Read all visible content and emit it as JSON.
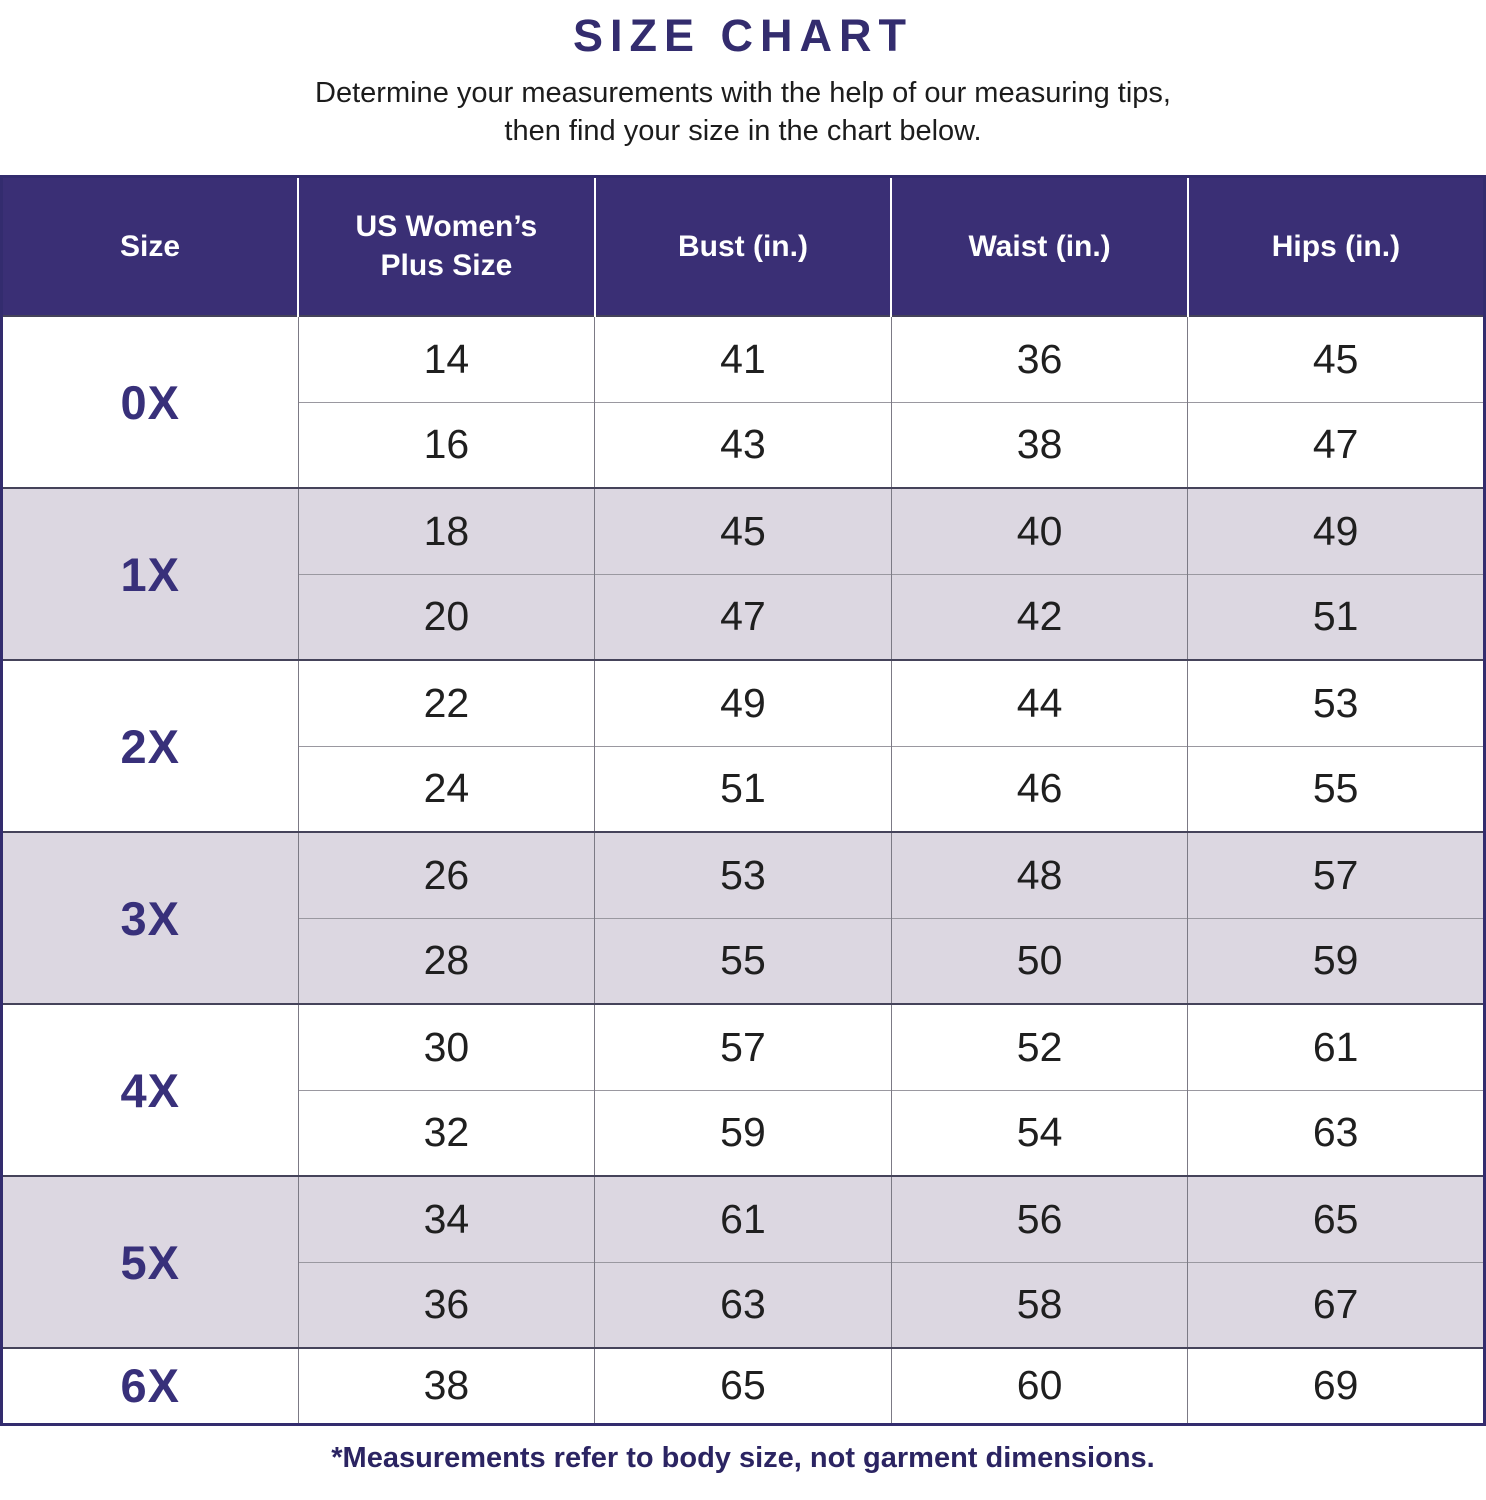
{
  "header": {
    "title": "SIZE CHART",
    "subtitle_line1": "Determine your measurements with the help of our measuring tips,",
    "subtitle_line2": "then find your size in the chart below."
  },
  "footnote": "*Measurements refer to body size, not garment dimensions.",
  "colors": {
    "header_bg": "#3a2f75",
    "title_text": "#332c6e",
    "size_label_text": "#38307a",
    "shaded_row_bg": "#dcd7e1",
    "footnote_text": "#2b2462",
    "body_text": "#1f1f1f",
    "table_border": "#332c6e",
    "grid_vertical": "#7c7a85",
    "grid_group": "#45435a",
    "grid_subrow": "#9a98a0"
  },
  "chart_data": {
    "type": "table",
    "title": "SIZE CHART",
    "columns": [
      "Size",
      "US Women’s Plus Size",
      "Bust (in.)",
      "Waist (in.)",
      "Hips (in.)"
    ],
    "units": "inches",
    "groups": [
      {
        "size": "0X",
        "shaded": false,
        "rows": [
          [
            14,
            41,
            36,
            45
          ],
          [
            16,
            43,
            38,
            47
          ]
        ]
      },
      {
        "size": "1X",
        "shaded": true,
        "rows": [
          [
            18,
            45,
            40,
            49
          ],
          [
            20,
            47,
            42,
            51
          ]
        ]
      },
      {
        "size": "2X",
        "shaded": false,
        "rows": [
          [
            22,
            49,
            44,
            53
          ],
          [
            24,
            51,
            46,
            55
          ]
        ]
      },
      {
        "size": "3X",
        "shaded": true,
        "rows": [
          [
            26,
            53,
            48,
            57
          ],
          [
            28,
            55,
            50,
            59
          ]
        ]
      },
      {
        "size": "4X",
        "shaded": false,
        "rows": [
          [
            30,
            57,
            52,
            61
          ],
          [
            32,
            59,
            54,
            63
          ]
        ]
      },
      {
        "size": "5X",
        "shaded": true,
        "rows": [
          [
            34,
            61,
            56,
            65
          ],
          [
            36,
            63,
            58,
            67
          ]
        ]
      },
      {
        "size": "6X",
        "shaded": false,
        "rows": [
          [
            38,
            65,
            60,
            69
          ]
        ]
      }
    ]
  }
}
